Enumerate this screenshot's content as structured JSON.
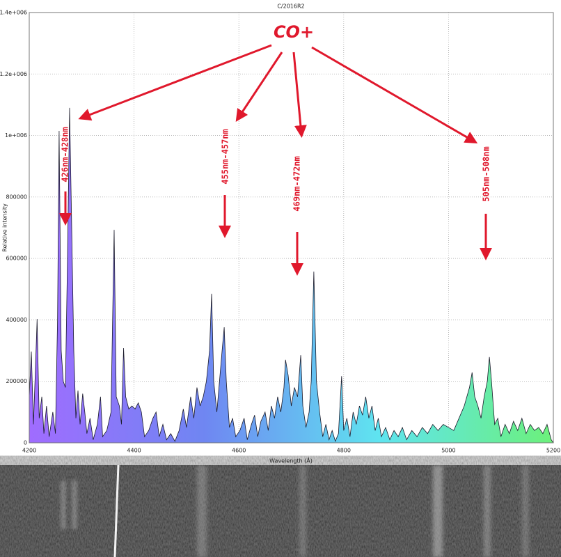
{
  "chart_data": {
    "type": "area",
    "title": "C/2016R2",
    "x_label": "Wavelength (Å)",
    "y_label": "Relative intensity",
    "xlim": [
      4200,
      5200
    ],
    "xticks": [
      4200,
      4400,
      4600,
      4800,
      5000,
      5200
    ],
    "ylim": [
      0,
      1400000
    ],
    "yticks": [
      0,
      200000,
      400000,
      600000,
      800000,
      {
        "value": 1000000,
        "label": "1e+006"
      },
      {
        "value": 1200000,
        "label": "1.2e+006"
      },
      {
        "value": 1400000,
        "label": "1.4e+006"
      }
    ],
    "grid": true,
    "line_color": "#1a1a2a",
    "fill_gradient": [
      "#a06cff",
      "#6f86f2",
      "#5fe4f0",
      "#6cf07a"
    ],
    "annotations": [
      "CO+",
      "426nm-428nm",
      "455nm-457nm",
      "469nm-472nm",
      "505nm-508nm"
    ],
    "x": [
      4200,
      4204,
      4208,
      4212,
      4215,
      4219,
      4224,
      4228,
      4233,
      4238,
      4245,
      4250,
      4254,
      4257,
      4261,
      4265,
      4269,
      4273,
      4277,
      4281,
      4285,
      4289,
      4293,
      4297,
      4302,
      4306,
      4310,
      4316,
      4322,
      4330,
      4336,
      4340,
      4348,
      4356,
      4362,
      4366,
      4372,
      4376,
      4380,
      4384,
      4390,
      4396,
      4402,
      4408,
      4414,
      4420,
      4428,
      4436,
      4442,
      4448,
      4455,
      4462,
      4470,
      4478,
      4486,
      4494,
      4500,
      4508,
      4514,
      4520,
      4526,
      4532,
      4538,
      4544,
      4548,
      4552,
      4558,
      4562,
      4568,
      4572,
      4576,
      4582,
      4588,
      4594,
      4602,
      4610,
      4616,
      4624,
      4630,
      4636,
      4642,
      4650,
      4656,
      4662,
      4668,
      4674,
      4680,
      4686,
      4689,
      4694,
      4700,
      4706,
      4712,
      4718,
      4722,
      4728,
      4734,
      4738,
      4743,
      4748,
      4754,
      4760,
      4766,
      4772,
      4778,
      4784,
      4790,
      4796,
      4800,
      4806,
      4812,
      4818,
      4824,
      4830,
      4836,
      4842,
      4848,
      4854,
      4860,
      4866,
      4872,
      4880,
      4888,
      4896,
      4904,
      4912,
      4920,
      4930,
      4940,
      4950,
      4960,
      4970,
      4980,
      4990,
      5000,
      5010,
      5020,
      5030,
      5040,
      5045,
      5050,
      5056,
      5062,
      5068,
      5074,
      5078,
      5082,
      5088,
      5094,
      5100,
      5108,
      5116,
      5124,
      5132,
      5140,
      5148,
      5156,
      5164,
      5172,
      5180,
      5188,
      5196,
      5200
    ],
    "values": [
      150000,
      297000,
      60000,
      250000,
      403000,
      80000,
      150000,
      30000,
      120000,
      20000,
      100000,
      30000,
      400000,
      1015000,
      300000,
      200000,
      180000,
      600000,
      1090000,
      700000,
      300000,
      80000,
      170000,
      60000,
      160000,
      100000,
      30000,
      80000,
      10000,
      60000,
      150000,
      20000,
      40000,
      100000,
      693000,
      150000,
      120000,
      60000,
      308000,
      150000,
      110000,
      120000,
      110000,
      130000,
      100000,
      20000,
      40000,
      80000,
      100000,
      20000,
      60000,
      10000,
      30000,
      5000,
      40000,
      110000,
      50000,
      150000,
      80000,
      180000,
      120000,
      150000,
      200000,
      300000,
      485000,
      200000,
      100000,
      180000,
      300000,
      376000,
      200000,
      50000,
      80000,
      20000,
      40000,
      80000,
      10000,
      60000,
      90000,
      20000,
      70000,
      100000,
      40000,
      120000,
      80000,
      150000,
      100000,
      180000,
      270000,
      220000,
      120000,
      180000,
      150000,
      285000,
      120000,
      50000,
      100000,
      200000,
      557000,
      200000,
      100000,
      20000,
      60000,
      10000,
      40000,
      5000,
      30000,
      217000,
      40000,
      80000,
      20000,
      100000,
      60000,
      120000,
      90000,
      150000,
      80000,
      120000,
      40000,
      80000,
      20000,
      50000,
      10000,
      40000,
      20000,
      50000,
      10000,
      40000,
      20000,
      50000,
      30000,
      60000,
      40000,
      60000,
      50000,
      40000,
      80000,
      120000,
      180000,
      229000,
      150000,
      120000,
      80000,
      150000,
      200000,
      279000,
      200000,
      60000,
      80000,
      20000,
      60000,
      30000,
      70000,
      40000,
      80000,
      30000,
      60000,
      40000,
      50000,
      30000,
      60000,
      10000,
      0
    ]
  }
}
